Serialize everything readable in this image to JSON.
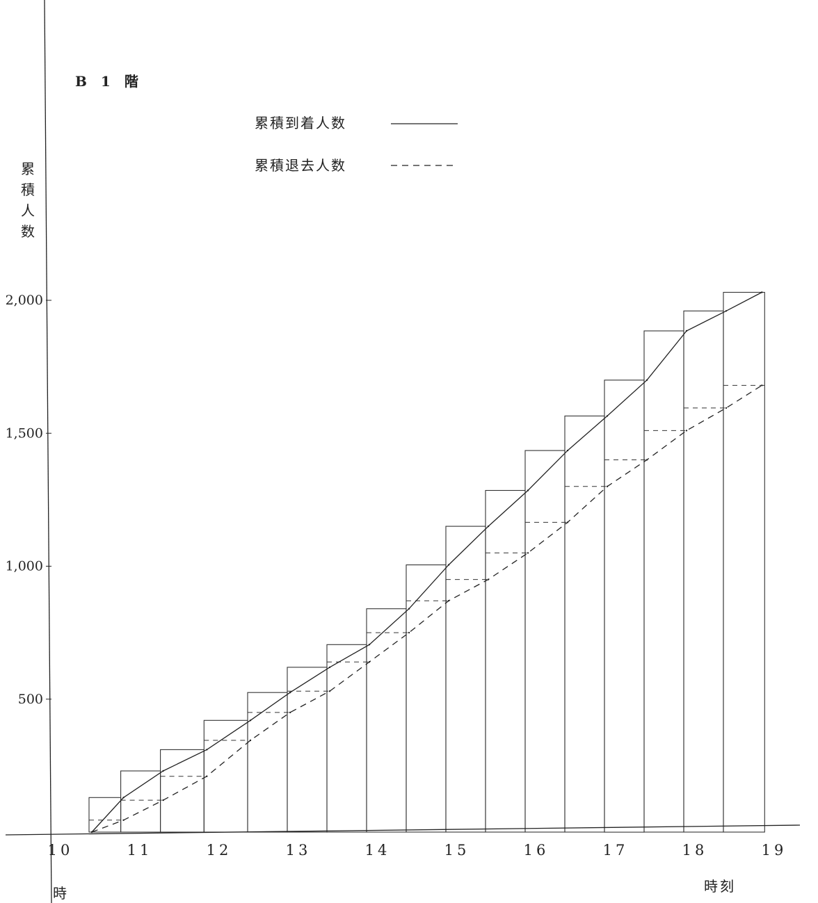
{
  "chart_data": {
    "type": "line",
    "title": "B　1　階",
    "xlabel": "時刻",
    "x_origin_label": "時",
    "ylabel": "累積人数",
    "xlim": [
      10,
      19
    ],
    "ylim": [
      0,
      2000
    ],
    "x_ticks": [
      {
        "value": 10,
        "label": "10"
      },
      {
        "value": 11,
        "label": "11"
      },
      {
        "value": 12,
        "label": "12"
      },
      {
        "value": 13,
        "label": "13"
      },
      {
        "value": 14,
        "label": "14"
      },
      {
        "value": 15,
        "label": "15"
      },
      {
        "value": 16,
        "label": "16"
      },
      {
        "value": 17,
        "label": "17"
      },
      {
        "value": 18,
        "label": "18"
      },
      {
        "value": 19,
        "label": "19"
      }
    ],
    "y_ticks": [
      {
        "value": 500,
        "label": "500"
      },
      {
        "value": 1000,
        "label": "1,000"
      },
      {
        "value": 1500,
        "label": "1,500"
      },
      {
        "value": 2000,
        "label": "2,000"
      }
    ],
    "legend_position": "top-center",
    "series": [
      {
        "name": "累積到着人数",
        "style": "solid",
        "x": [
          10.5,
          10.9,
          11.4,
          11.95,
          12.5,
          13.0,
          13.5,
          14.0,
          14.5,
          15.0,
          15.5,
          16.0,
          16.5,
          17.0,
          17.5,
          18.0,
          18.5,
          18.95
        ],
        "values": [
          0,
          130,
          230,
          310,
          420,
          525,
          620,
          705,
          840,
          1005,
          1150,
          1285,
          1435,
          1565,
          1700,
          1885,
          1960,
          2030
        ]
      },
      {
        "name": "累積退去人数",
        "style": "dashed",
        "x": [
          10.5,
          10.9,
          11.4,
          11.95,
          12.5,
          13.0,
          13.5,
          14.0,
          14.5,
          15.0,
          15.5,
          16.0,
          16.5,
          17.0,
          17.5,
          18.0,
          18.5,
          18.95
        ],
        "values": [
          0,
          45,
          120,
          210,
          345,
          450,
          530,
          640,
          750,
          870,
          950,
          1050,
          1165,
          1300,
          1400,
          1510,
          1595,
          1680
        ]
      }
    ]
  }
}
